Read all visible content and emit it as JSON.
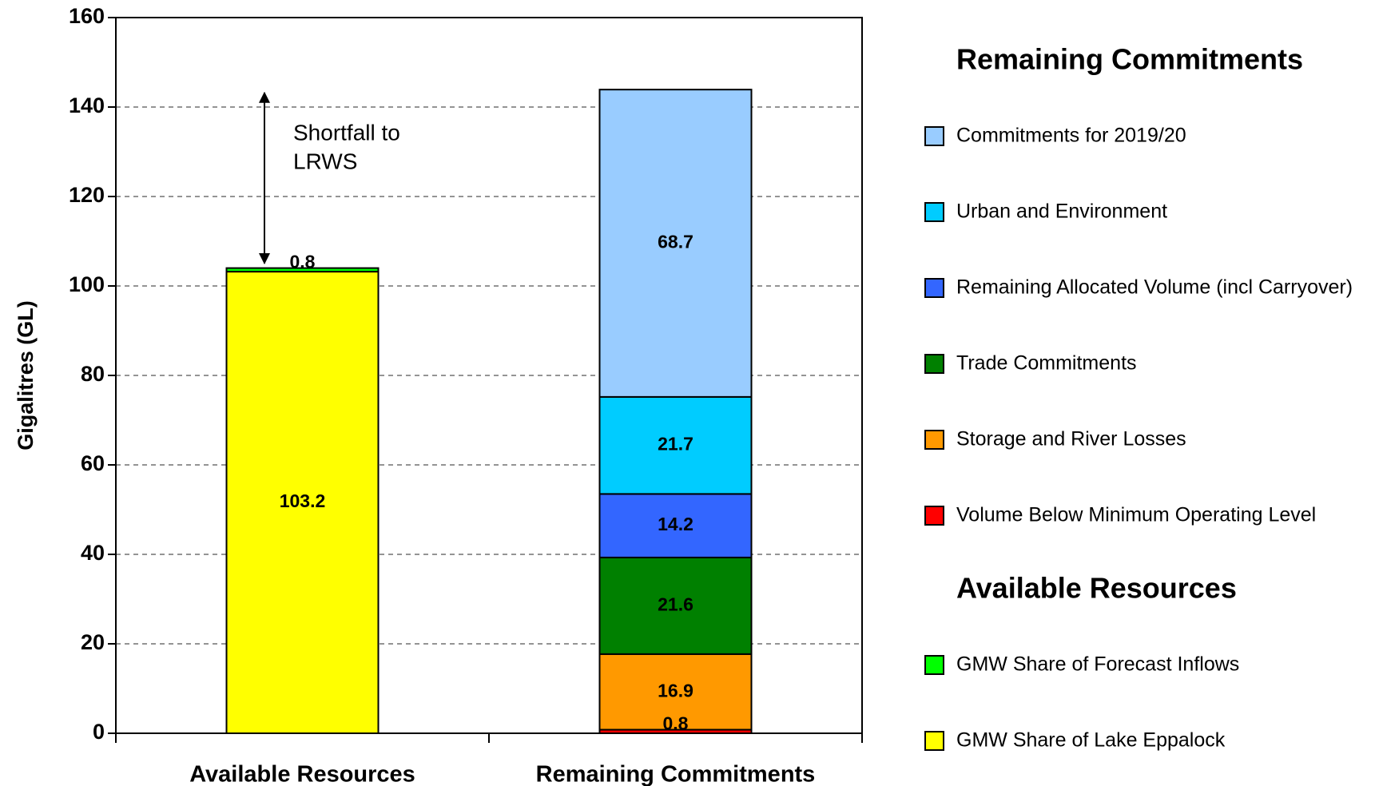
{
  "chart_data": {
    "type": "stacked_bar",
    "categories": [
      "Available Resources",
      "Remaining Commitments"
    ],
    "y_axis_label": "Gigalitres (GL)",
    "ylim": [
      0,
      160
    ],
    "yticks": [
      0,
      20,
      40,
      60,
      80,
      100,
      120,
      140,
      160
    ],
    "grid": true,
    "annotation": [
      "Shortfall to",
      "LRWS"
    ],
    "series_groups": [
      {
        "title": "Remaining Commitments",
        "series": [
          {
            "name": "Commitments for 2019/20",
            "color": "#99ccff",
            "values": [
              null,
              68.7
            ]
          },
          {
            "name": "Urban and Environment",
            "color": "#00ccff",
            "values": [
              null,
              21.7
            ]
          },
          {
            "name": "Remaining Allocated Volume (incl Carryover)",
            "color": "#3366ff",
            "values": [
              null,
              14.2
            ]
          },
          {
            "name": "Trade Commitments",
            "color": "#008000",
            "values": [
              null,
              21.6
            ]
          },
          {
            "name": "Storage and River Losses",
            "color": "#ff9900",
            "values": [
              null,
              16.9
            ]
          },
          {
            "name": "Volume Below Minimum Operating Level",
            "color": "#ff0000",
            "values": [
              null,
              0.8
            ]
          }
        ]
      },
      {
        "title": "Available Resources",
        "series": [
          {
            "name": "GMW Share of Forecast Inflows",
            "color": "#00ff00",
            "values": [
              0.8,
              null
            ]
          },
          {
            "name": "GMW Share of Lake Eppalock",
            "color": "#ffff00",
            "values": [
              103.2,
              null
            ]
          }
        ]
      }
    ]
  }
}
